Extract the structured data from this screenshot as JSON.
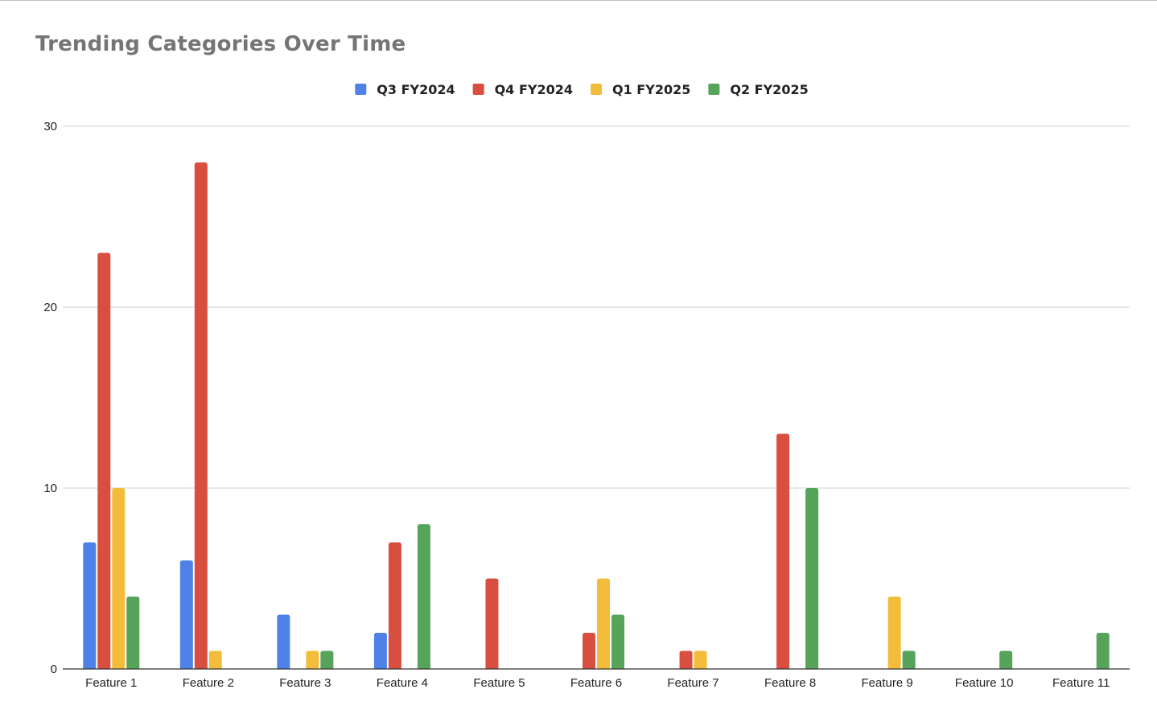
{
  "chart_data": {
    "type": "bar",
    "title": "Trending Categories Over Time",
    "xlabel": "",
    "ylabel": "",
    "ylim": [
      0,
      30
    ],
    "yticks": [
      0,
      10,
      20,
      30
    ],
    "grid": true,
    "legend_position": "top-center",
    "categories": [
      "Feature 1",
      "Feature 2",
      "Feature 3",
      "Feature 4",
      "Feature 5",
      "Feature 6",
      "Feature 7",
      "Feature 8",
      "Feature 9",
      "Feature 10",
      "Feature 11"
    ],
    "series": [
      {
        "name": "Q3 FY2024",
        "color": "#4f82e8",
        "values": [
          7,
          6,
          3,
          2,
          0,
          0,
          0,
          0,
          0,
          0,
          0
        ]
      },
      {
        "name": "Q4 FY2024",
        "color": "#d94f3f",
        "values": [
          23,
          28,
          0,
          7,
          5,
          2,
          1,
          13,
          0,
          0,
          0
        ]
      },
      {
        "name": "Q1 FY2025",
        "color": "#f3bd3b",
        "values": [
          10,
          1,
          1,
          0,
          0,
          5,
          1,
          0,
          4,
          0,
          0
        ]
      },
      {
        "name": "Q2 FY2025",
        "color": "#56a35a",
        "values": [
          4,
          0,
          1,
          8,
          0,
          3,
          0,
          10,
          1,
          1,
          2
        ]
      }
    ]
  }
}
